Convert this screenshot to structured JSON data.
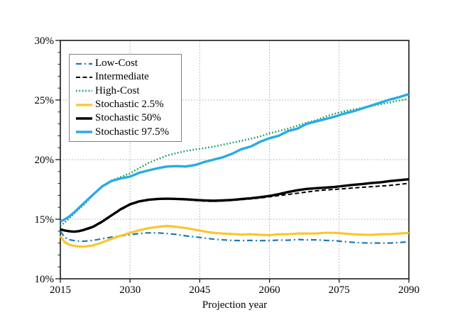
{
  "figure": {
    "background_color": "#ffffff",
    "text_color": "#000000",
    "border_color": "#1a1a1a",
    "legend_border_color": "#808080"
  },
  "chart_data": {
    "type": "line",
    "title": "",
    "xlabel": "Projection year",
    "ylabel": "",
    "xlim": [
      2015,
      2090
    ],
    "ylim": [
      10,
      30
    ],
    "grid": {
      "on": true,
      "color": "#a8a8a8",
      "x_values": [
        2030,
        2045,
        2060,
        2075
      ],
      "y_values": [
        15,
        20,
        25
      ]
    },
    "legend_position": "upper-left",
    "x_ticks": [
      {
        "label": "2015",
        "value": 2015
      },
      {
        "label": "2030",
        "value": 2030
      },
      {
        "label": "2045",
        "value": 2045
      },
      {
        "label": "2060",
        "value": 2060
      },
      {
        "label": "2075",
        "value": 2075
      },
      {
        "label": "2090",
        "value": 2090
      }
    ],
    "y_ticks": [
      {
        "label": "10%",
        "value": 10
      },
      {
        "label": "15%",
        "value": 15
      },
      {
        "label": "20%",
        "value": 20
      },
      {
        "label": "25%",
        "value": 25
      },
      {
        "label": "30%",
        "value": 30
      }
    ],
    "y_minor_tick_step": 1,
    "x": [
      2015,
      2016,
      2017,
      2018,
      2019,
      2020,
      2022,
      2024,
      2026,
      2028,
      2030,
      2032,
      2034,
      2036,
      2038,
      2040,
      2042,
      2044,
      2046,
      2048,
      2050,
      2052,
      2054,
      2056,
      2058,
      2060,
      2062,
      2064,
      2066,
      2068,
      2070,
      2072,
      2074,
      2076,
      2078,
      2080,
      2082,
      2084,
      2086,
      2088,
      2090
    ],
    "series": [
      {
        "name": "Low-Cost",
        "color": "#1d79b5",
        "style": "dash-dot",
        "width": 2.2,
        "values": [
          14.0,
          13.45,
          13.28,
          13.2,
          13.16,
          13.15,
          13.22,
          13.36,
          13.5,
          13.6,
          13.7,
          13.8,
          13.86,
          13.85,
          13.8,
          13.72,
          13.6,
          13.52,
          13.42,
          13.32,
          13.27,
          13.22,
          13.2,
          13.22,
          13.2,
          13.21,
          13.25,
          13.24,
          13.3,
          13.26,
          13.27,
          13.22,
          13.2,
          13.12,
          13.06,
          13.02,
          13.0,
          13.0,
          13.0,
          13.05,
          13.1
        ]
      },
      {
        "name": "Intermediate",
        "color": "#000000",
        "style": "dashed",
        "width": 2.0,
        "values": [
          14.1,
          14.02,
          13.97,
          13.95,
          13.98,
          14.05,
          14.3,
          14.75,
          15.28,
          15.78,
          16.2,
          16.45,
          16.6,
          16.67,
          16.7,
          16.67,
          16.62,
          16.57,
          16.52,
          16.5,
          16.53,
          16.58,
          16.64,
          16.7,
          16.78,
          16.88,
          16.98,
          17.08,
          17.18,
          17.28,
          17.38,
          17.45,
          17.5,
          17.56,
          17.62,
          17.68,
          17.73,
          17.78,
          17.84,
          17.92,
          18.02
        ]
      },
      {
        "name": "High-Cost",
        "color": "#14a25c",
        "style": "dotted",
        "width": 2.4,
        "values": [
          14.42,
          14.75,
          15.1,
          15.48,
          15.85,
          16.18,
          17.0,
          17.8,
          18.25,
          18.55,
          18.85,
          19.3,
          19.72,
          20.05,
          20.35,
          20.55,
          20.72,
          20.85,
          20.95,
          21.1,
          21.25,
          21.42,
          21.58,
          21.75,
          21.95,
          22.2,
          22.4,
          22.6,
          22.85,
          23.1,
          23.3,
          23.6,
          23.85,
          24.05,
          24.2,
          24.35,
          24.5,
          24.65,
          24.8,
          24.95,
          25.1
        ]
      },
      {
        "name": "Stochastic 2.5%",
        "color": "#fdc42c",
        "style": "solid",
        "width": 3.2,
        "values": [
          13.6,
          13.05,
          12.85,
          12.76,
          12.71,
          12.7,
          12.8,
          13.05,
          13.35,
          13.62,
          13.85,
          14.08,
          14.25,
          14.36,
          14.44,
          14.36,
          14.25,
          14.12,
          13.97,
          13.86,
          13.8,
          13.76,
          13.71,
          13.74,
          13.69,
          13.66,
          13.74,
          13.74,
          13.8,
          13.8,
          13.8,
          13.86,
          13.86,
          13.8,
          13.74,
          13.7,
          13.69,
          13.74,
          13.75,
          13.8,
          13.85
        ]
      },
      {
        "name": "Stochastic 50%",
        "color": "#000000",
        "style": "solid",
        "width": 3.4,
        "values": [
          14.15,
          14.05,
          13.98,
          13.95,
          14.0,
          14.1,
          14.36,
          14.8,
          15.32,
          15.84,
          16.25,
          16.5,
          16.63,
          16.7,
          16.72,
          16.7,
          16.67,
          16.62,
          16.57,
          16.55,
          16.58,
          16.62,
          16.69,
          16.76,
          16.85,
          16.95,
          17.1,
          17.28,
          17.43,
          17.54,
          17.6,
          17.65,
          17.7,
          17.8,
          17.88,
          17.95,
          18.04,
          18.1,
          18.2,
          18.28,
          18.35
        ]
      },
      {
        "name": "Stochastic 97.5%",
        "color": "#29abe2",
        "style": "solid",
        "width": 3.4,
        "values": [
          14.8,
          15.0,
          15.25,
          15.58,
          15.95,
          16.32,
          17.05,
          17.75,
          18.2,
          18.42,
          18.58,
          18.9,
          19.1,
          19.28,
          19.42,
          19.45,
          19.42,
          19.55,
          19.8,
          20.0,
          20.2,
          20.5,
          20.88,
          21.1,
          21.5,
          21.8,
          22.0,
          22.4,
          22.6,
          23.0,
          23.2,
          23.4,
          23.6,
          23.85,
          24.05,
          24.3,
          24.55,
          24.8,
          25.05,
          25.25,
          25.5
        ]
      }
    ]
  }
}
